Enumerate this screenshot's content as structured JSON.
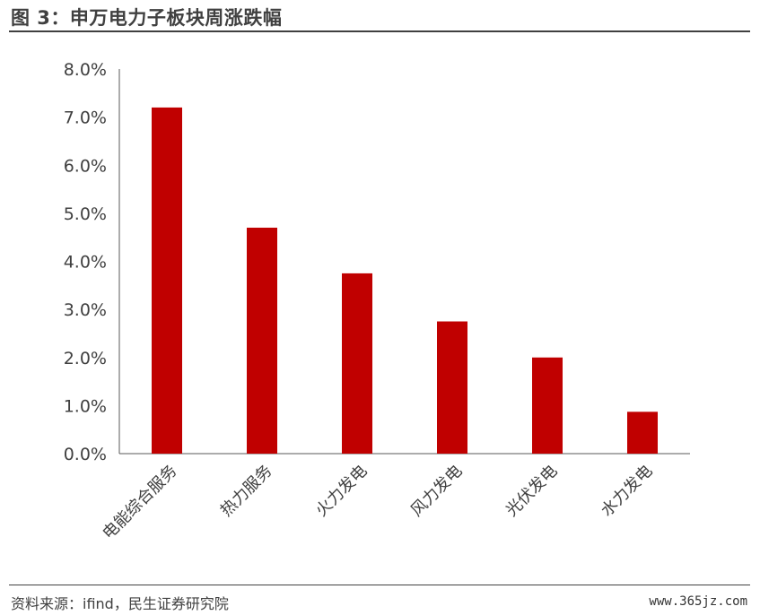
{
  "figure": {
    "title": "图 3：申万电力子板块周涨跌幅",
    "source": "资料来源：ifind，民生证券研究院",
    "watermark": "www.365jz.com"
  },
  "chart_data": {
    "type": "bar",
    "title": "",
    "xlabel": "",
    "ylabel": "",
    "categories": [
      "电能综合服务",
      "热力服务",
      "火力发电",
      "风力发电",
      "光伏发电",
      "水力发电"
    ],
    "values": [
      7.2,
      4.7,
      3.75,
      2.75,
      2.0,
      0.87
    ],
    "unit": "%",
    "ylim": [
      0,
      8
    ],
    "yticks": [
      0,
      1,
      2,
      3,
      4,
      5,
      6,
      7,
      8
    ],
    "ytick_labels": [
      "0.0%",
      "1.0%",
      "2.0%",
      "3.0%",
      "4.0%",
      "5.0%",
      "6.0%",
      "7.0%",
      "8.0%"
    ],
    "bar_color": "#C00000",
    "axis_color": "#595959",
    "grid": false,
    "legend": "none"
  }
}
